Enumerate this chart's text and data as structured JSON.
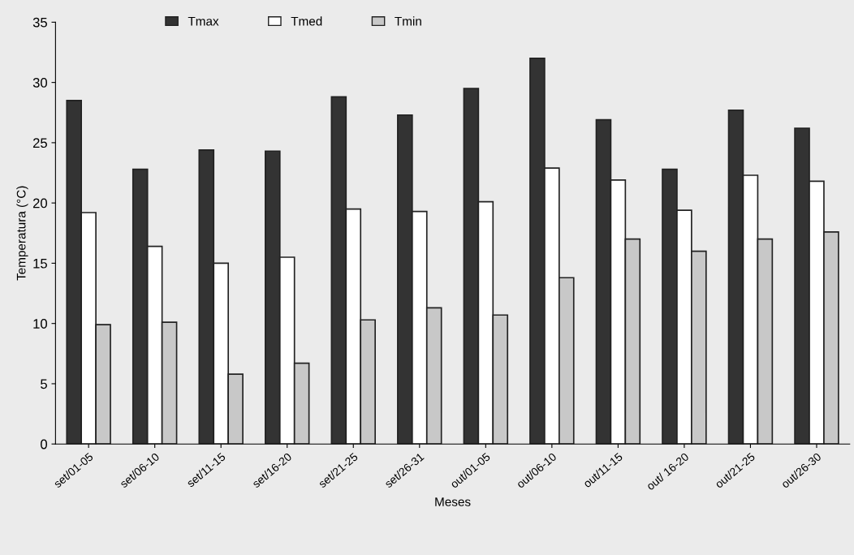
{
  "chart_data": {
    "type": "bar",
    "xlabel": "Meses",
    "ylabel": "Temperatura (°C)",
    "categories": [
      "set/01-05",
      "set/06-10",
      "set/11-15",
      "set/16-20",
      "set/21-25",
      "set/26-31",
      "out/01-05",
      "out/06-10",
      "out/11-15",
      "out/ 16-20",
      "out/21-25",
      "out/26-30"
    ],
    "series": [
      {
        "name": "Tmax",
        "color": "#333333",
        "values": [
          28.5,
          22.8,
          24.4,
          24.3,
          28.8,
          27.3,
          29.5,
          32.0,
          26.9,
          22.8,
          27.7,
          26.2
        ]
      },
      {
        "name": "Tmed",
        "color": "#ffffff",
        "values": [
          19.2,
          16.4,
          15.0,
          15.5,
          19.5,
          19.3,
          20.1,
          22.9,
          21.9,
          19.4,
          22.3,
          21.8
        ]
      },
      {
        "name": "Tmin",
        "color": "#c8c8c8",
        "values": [
          9.9,
          10.1,
          5.8,
          6.7,
          10.3,
          11.3,
          10.7,
          13.8,
          17.0,
          16.0,
          17.0,
          17.6
        ]
      }
    ],
    "ylim": [
      0,
      35
    ],
    "yticks": [
      0,
      5,
      10,
      15,
      20,
      25,
      30,
      35
    ],
    "grid": false,
    "legend": "top"
  }
}
